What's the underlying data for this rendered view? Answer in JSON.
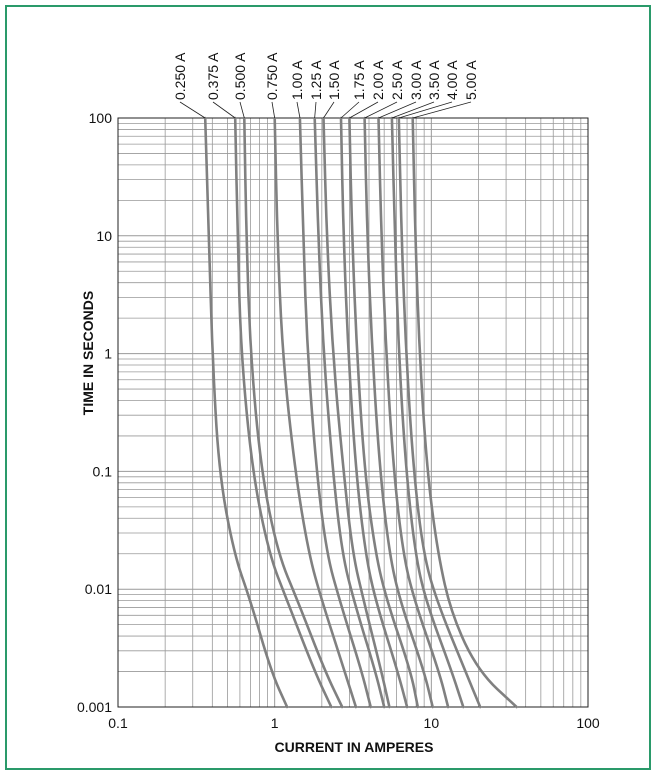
{
  "colors": {
    "border": "#2a9a6a",
    "curve": "#808080",
    "grid": "#999999",
    "axis": "#222222"
  },
  "chart_data": {
    "type": "line",
    "title": "",
    "xlabel": "CURRENT IN AMPERES",
    "ylabel": "TIME IN SECONDS",
    "xscale": "log",
    "yscale": "log",
    "xlim": [
      0.1,
      100
    ],
    "ylim": [
      0.001,
      100
    ],
    "grid": true,
    "legend": "series labels above plot, rotated vertically",
    "x_tick_labels": [
      "0.1",
      "1",
      "10",
      "100"
    ],
    "y_tick_labels": [
      "100",
      "10",
      "1",
      "0.1",
      "0.01",
      "0.001"
    ],
    "series": [
      {
        "name": "0.250 A",
        "points": [
          [
            0.36,
            100
          ],
          [
            0.38,
            10
          ],
          [
            0.4,
            1
          ],
          [
            0.44,
            0.1
          ],
          [
            0.55,
            0.02
          ],
          [
            0.7,
            0.008
          ],
          [
            0.95,
            0.002
          ],
          [
            1.2,
            0.001
          ]
        ]
      },
      {
        "name": "0.375 A",
        "points": [
          [
            0.56,
            100
          ],
          [
            0.58,
            10
          ],
          [
            0.61,
            1
          ],
          [
            0.72,
            0.1
          ],
          [
            0.92,
            0.02
          ],
          [
            1.2,
            0.008
          ],
          [
            1.8,
            0.002
          ],
          [
            2.3,
            0.001
          ]
        ]
      },
      {
        "name": "0.500 A",
        "points": [
          [
            0.64,
            100
          ],
          [
            0.66,
            10
          ],
          [
            0.7,
            1
          ],
          [
            0.82,
            0.1
          ],
          [
            1.05,
            0.02
          ],
          [
            1.4,
            0.008
          ],
          [
            2.1,
            0.002
          ],
          [
            2.7,
            0.001
          ]
        ]
      },
      {
        "name": "0.750 A",
        "points": [
          [
            1.0,
            100
          ],
          [
            1.04,
            10
          ],
          [
            1.12,
            1
          ],
          [
            1.35,
            0.1
          ],
          [
            1.65,
            0.02
          ],
          [
            2.0,
            0.008
          ],
          [
            2.8,
            0.002
          ],
          [
            3.3,
            0.001
          ]
        ]
      },
      {
        "name": "1.00 A",
        "points": [
          [
            1.45,
            100
          ],
          [
            1.52,
            10
          ],
          [
            1.62,
            1
          ],
          [
            1.85,
            0.1
          ],
          [
            2.15,
            0.02
          ],
          [
            2.6,
            0.008
          ],
          [
            3.6,
            0.002
          ],
          [
            4.1,
            0.001
          ]
        ]
      },
      {
        "name": "1.25 A",
        "points": [
          [
            1.8,
            100
          ],
          [
            1.9,
            10
          ],
          [
            2.05,
            1
          ],
          [
            2.35,
            0.1
          ],
          [
            2.7,
            0.02
          ],
          [
            3.2,
            0.008
          ],
          [
            4.4,
            0.002
          ],
          [
            5.0,
            0.001
          ]
        ]
      },
      {
        "name": "1.50 A",
        "points": [
          [
            2.05,
            100
          ],
          [
            2.15,
            10
          ],
          [
            2.35,
            1
          ],
          [
            2.75,
            0.1
          ],
          [
            3.15,
            0.02
          ],
          [
            3.7,
            0.008
          ],
          [
            4.8,
            0.002
          ],
          [
            5.4,
            0.001
          ]
        ]
      },
      {
        "name": "1.75 A",
        "points": [
          [
            2.65,
            100
          ],
          [
            2.75,
            10
          ],
          [
            2.95,
            1
          ],
          [
            3.3,
            0.1
          ],
          [
            3.8,
            0.02
          ],
          [
            4.4,
            0.008
          ],
          [
            6.1,
            0.002
          ],
          [
            7.0,
            0.001
          ]
        ]
      },
      {
        "name": "2.00 A",
        "points": [
          [
            3.0,
            100
          ],
          [
            3.12,
            10
          ],
          [
            3.35,
            1
          ],
          [
            3.75,
            0.1
          ],
          [
            4.4,
            0.02
          ],
          [
            5.2,
            0.008
          ],
          [
            7.4,
            0.002
          ],
          [
            8.2,
            0.001
          ]
        ]
      },
      {
        "name": "2.50 A",
        "points": [
          [
            3.75,
            100
          ],
          [
            3.9,
            10
          ],
          [
            4.2,
            1
          ],
          [
            4.7,
            0.1
          ],
          [
            5.4,
            0.02
          ],
          [
            6.3,
            0.008
          ],
          [
            9.0,
            0.002
          ],
          [
            10.2,
            0.001
          ]
        ]
      },
      {
        "name": "3.00 A",
        "points": [
          [
            4.6,
            100
          ],
          [
            4.8,
            10
          ],
          [
            5.15,
            1
          ],
          [
            5.75,
            0.1
          ],
          [
            6.6,
            0.02
          ],
          [
            7.8,
            0.008
          ],
          [
            11.2,
            0.002
          ],
          [
            12.8,
            0.001
          ]
        ]
      },
      {
        "name": "3.50 A",
        "points": [
          [
            5.6,
            100
          ],
          [
            5.85,
            10
          ],
          [
            6.2,
            1
          ],
          [
            6.9,
            0.1
          ],
          [
            7.9,
            0.02
          ],
          [
            9.2,
            0.008
          ],
          [
            13.5,
            0.002
          ],
          [
            16.0,
            0.001
          ]
        ]
      },
      {
        "name": "4.00 A",
        "points": [
          [
            6.2,
            100
          ],
          [
            6.45,
            10
          ],
          [
            6.9,
            1
          ],
          [
            7.7,
            0.1
          ],
          [
            8.9,
            0.02
          ],
          [
            10.8,
            0.008
          ],
          [
            16.5,
            0.002
          ],
          [
            20.5,
            0.001
          ]
        ]
      },
      {
        "name": "5.00 A",
        "points": [
          [
            7.6,
            100
          ],
          [
            7.9,
            10
          ],
          [
            8.4,
            1
          ],
          [
            9.4,
            0.1
          ],
          [
            11.0,
            0.02
          ],
          [
            13.5,
            0.006
          ],
          [
            20.0,
            0.002
          ],
          [
            35.0,
            0.001
          ]
        ]
      }
    ]
  }
}
